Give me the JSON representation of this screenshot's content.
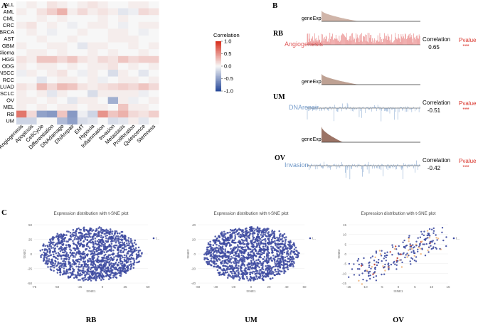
{
  "panel_labels": {
    "a": "A",
    "b": "B",
    "c": "C"
  },
  "panel_a": {
    "rows": [
      "ALL",
      "AML",
      "CML",
      "CRC",
      "BRCA",
      "AST",
      "GBM",
      "Glioma",
      "HGG",
      "ODG",
      "HNSCC",
      "RCC",
      "LUAD",
      "NSCLC",
      "OV",
      "MEL",
      "RB",
      "UM"
    ],
    "cols": [
      "Angiogenesis",
      "Apoptosis",
      "CellCycle",
      "Differentiation",
      "DNAdamage",
      "DNArepair",
      "EMT",
      "Hypoxia",
      "Inflammation",
      "Invasion",
      "Metastasis",
      "Proliferation",
      "Quiescence",
      "Stemness"
    ],
    "legend_title": "Correlation",
    "legend_ticks": [
      "1.0",
      "0.5",
      "0.0",
      "-0.5",
      "-1.0"
    ],
    "legend_tick_values": [
      1.0,
      0.5,
      0.0,
      -0.5,
      -1.0
    ],
    "colors": {
      "pos": "#d7301f",
      "neutral": "#f7f7f7",
      "neg": "#2b4c9b"
    }
  },
  "panel_b": {
    "blocks": [
      {
        "cancer": "RB",
        "gene_label": "geneExp",
        "state": "Angiogenesis",
        "corr_label": "Correlation",
        "corr": "0.65",
        "pval_label": "Pvalue",
        "stars": "***",
        "state_color": "#e05a5a",
        "area_color": "#c8a89a"
      },
      {
        "cancer": "UM",
        "gene_label": "geneExp",
        "state": "DNArepair",
        "corr_label": "Correlation",
        "corr": "-0.51",
        "pval_label": "Pvalue",
        "stars": "***",
        "state_color": "#7a9fcc",
        "area_color": "#b39080"
      },
      {
        "cancer": "OV",
        "gene_label": "geneExp",
        "state": "Invasion",
        "corr_label": "Correlation",
        "corr": "-0.42",
        "pval_label": "Pvalue",
        "stars": "***",
        "state_color": "#6f97c7",
        "area_color": "#8a5a4a"
      }
    ]
  },
  "panel_c": {
    "plots": [
      {
        "title": "Expression distribution with t-SNE plot",
        "xlabel": "tSNE1",
        "ylabel": "tSNE2",
        "xticks": [
          "-75",
          "-50",
          "-25",
          "0",
          "25",
          "50"
        ],
        "yticks": [
          "50",
          "25",
          "0",
          "-25",
          "-50"
        ],
        "legend": "t...",
        "cancer": "RB"
      },
      {
        "title": "Expression distribution with t-SNE plot",
        "xlabel": "tSNE1",
        "ylabel": "tSNE2",
        "xticks": [
          "-60",
          "-40",
          "-20",
          "0",
          "20",
          "40",
          "60"
        ],
        "yticks": [
          "40",
          "20",
          "0",
          "-20",
          "-40"
        ],
        "legend": "t...",
        "cancer": "UM"
      },
      {
        "title": "Expression distribution with t-SNE plot",
        "xlabel": "tSNE1",
        "ylabel": "tSNE2",
        "xticks": [
          "-15",
          "-10",
          "-5",
          "0",
          "5",
          "10",
          "15"
        ],
        "yticks": [
          "15",
          "10",
          "5",
          "0",
          "-5",
          "-10",
          "-15"
        ],
        "legend": "t...",
        "cancer": "OV"
      }
    ],
    "point_color": "#3d4aa0",
    "highlight_colors": [
      "#f0b27a",
      "#c0392b"
    ]
  },
  "chart_data": [
    {
      "type": "heatmap",
      "title": "",
      "rows": [
        "ALL",
        "AML",
        "CML",
        "CRC",
        "BRCA",
        "AST",
        "GBM",
        "Glioma",
        "HGG",
        "ODG",
        "HNSCC",
        "RCC",
        "LUAD",
        "NSCLC",
        "OV",
        "MEL",
        "RB",
        "UM"
      ],
      "cols": [
        "Angiogenesis",
        "Apoptosis",
        "CellCycle",
        "Differentiation",
        "DNAdamage",
        "DNArepair",
        "EMT",
        "Hypoxia",
        "Inflammation",
        "Invasion",
        "Metastasis",
        "Proliferation",
        "Quiescence",
        "Stemness"
      ],
      "colorbar_label": "Correlation",
      "colorbar_range": [
        -1.0,
        1.0
      ],
      "values": [
        [
          0.0,
          0.05,
          0.0,
          0.1,
          0.05,
          0.0,
          0.05,
          0.1,
          0.05,
          0.0,
          0.0,
          0.05,
          0.05,
          0.0
        ],
        [
          0.05,
          0.0,
          0.1,
          0.2,
          0.35,
          0.05,
          0.15,
          0.05,
          0.1,
          0.05,
          -0.1,
          -0.05,
          0.15,
          0.1
        ],
        [
          0.0,
          0.0,
          0.05,
          0.0,
          0.05,
          0.0,
          0.0,
          0.0,
          0.05,
          0.0,
          0.05,
          0.0,
          0.0,
          0.0
        ],
        [
          0.05,
          0.1,
          0.0,
          0.05,
          0.0,
          -0.05,
          0.0,
          0.05,
          0.05,
          0.0,
          -0.05,
          0.0,
          0.05,
          0.05
        ],
        [
          0.0,
          0.05,
          0.0,
          -0.05,
          0.0,
          0.0,
          0.05,
          0.0,
          0.0,
          0.05,
          0.05,
          0.0,
          -0.05,
          0.0
        ],
        [
          0.0,
          0.0,
          0.05,
          0.0,
          0.0,
          0.05,
          0.0,
          0.0,
          0.0,
          0.05,
          0.05,
          0.05,
          0.0,
          0.0
        ],
        [
          0.05,
          0.0,
          0.0,
          0.05,
          0.05,
          0.0,
          -0.1,
          0.05,
          0.05,
          0.0,
          0.0,
          0.05,
          0.0,
          0.05
        ],
        [
          0.0,
          0.05,
          0.05,
          0.0,
          0.05,
          0.0,
          0.0,
          0.05,
          0.0,
          0.05,
          0.0,
          0.0,
          0.05,
          0.0
        ],
        [
          0.1,
          0.05,
          0.25,
          0.25,
          0.15,
          0.25,
          0.1,
          0.05,
          0.15,
          0.1,
          0.25,
          0.15,
          0.2,
          0.2
        ],
        [
          0.05,
          0.0,
          0.05,
          0.05,
          0.0,
          0.05,
          0.0,
          0.05,
          0.05,
          0.1,
          0.0,
          0.05,
          0.0,
          0.05
        ],
        [
          -0.05,
          0.05,
          0.0,
          0.05,
          0.1,
          0.0,
          -0.05,
          0.05,
          0.0,
          -0.15,
          0.05,
          0.0,
          -0.1,
          0.0
        ],
        [
          0.0,
          0.0,
          -0.1,
          0.0,
          0.05,
          0.05,
          0.0,
          0.05,
          -0.05,
          0.0,
          0.05,
          0.05,
          0.0,
          0.05
        ],
        [
          0.1,
          0.05,
          0.3,
          0.15,
          0.3,
          0.25,
          0.1,
          0.05,
          0.1,
          0.15,
          0.2,
          0.15,
          0.25,
          0.15
        ],
        [
          0.05,
          0.0,
          0.05,
          -0.1,
          0.05,
          0.0,
          0.0,
          -0.15,
          0.05,
          0.05,
          0.05,
          0.05,
          -0.05,
          0.0
        ],
        [
          0.05,
          0.05,
          0.0,
          0.05,
          0.0,
          -0.1,
          0.05,
          0.05,
          0.0,
          -0.42,
          0.05,
          -0.05,
          0.0,
          0.05
        ],
        [
          0.05,
          0.0,
          0.05,
          0.0,
          0.05,
          0.05,
          0.0,
          0.05,
          0.05,
          0.0,
          0.25,
          0.05,
          0.05,
          0.0
        ],
        [
          0.65,
          0.15,
          -0.5,
          -0.55,
          0.25,
          -0.55,
          -0.05,
          -0.2,
          0.5,
          0.25,
          0.35,
          0.15,
          0.1,
          0.2
        ],
        [
          -0.2,
          -0.2,
          0.0,
          0.0,
          -0.35,
          -0.51,
          -0.15,
          -0.1,
          0.0,
          -0.15,
          -0.1,
          0.05,
          -0.1,
          0.0
        ]
      ]
    }
  ]
}
